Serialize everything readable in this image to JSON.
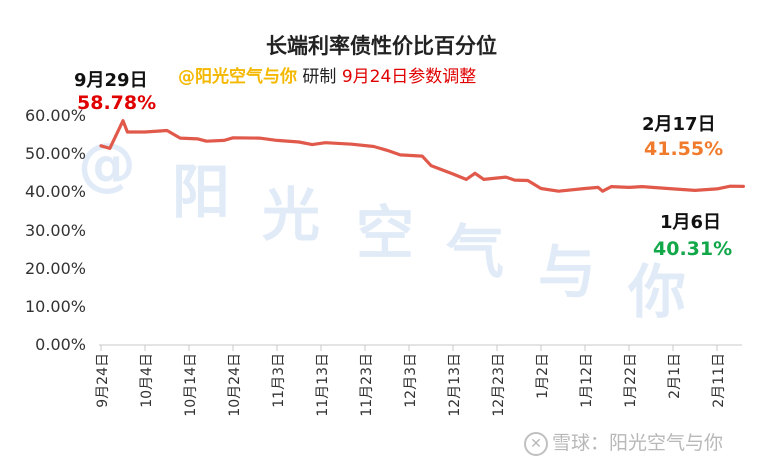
{
  "title": "长端利率债性价比百分位",
  "subtitle": {
    "author": "@阳光空气与你",
    "made_by": "研制",
    "note": "9月24日参数调整"
  },
  "annotations": {
    "peak": {
      "date": "9月29日",
      "value": "58.78%",
      "color": "#e00000"
    },
    "latest": {
      "date": "2月17日",
      "value": "41.55%",
      "color": "#f07b2c"
    },
    "low": {
      "date": "1月6日",
      "value": "40.31%",
      "color": "#12a84a"
    }
  },
  "watermark": {
    "main": [
      "@",
      "阳",
      "光",
      "空",
      "气",
      "与",
      "你"
    ],
    "footer": "雪球：阳光空气与你"
  },
  "chart_data": {
    "type": "line",
    "title": "长端利率债性价比百分位",
    "xlabel": "",
    "ylabel": "",
    "ylim": [
      0,
      60
    ],
    "yticks": [
      "0.00%",
      "10.00%",
      "20.00%",
      "30.00%",
      "40.00%",
      "50.00%",
      "60.00%"
    ],
    "xticks": [
      "9月24日",
      "10月4日",
      "10月14日",
      "10月24日",
      "11月3日",
      "11月13日",
      "11月23日",
      "12月3日",
      "12月13日",
      "12月23日",
      "1月2日",
      "1月12日",
      "1月22日",
      "2月1日",
      "2月11日"
    ],
    "grid": false,
    "legend": null,
    "line_color": "#e0594a",
    "series": [
      {
        "name": "长端利率债性价比百分位",
        "points": [
          {
            "x": "9月24日",
            "y": 52.2
          },
          {
            "x": "9月26日",
            "y": 51.5
          },
          {
            "x": "9月29日",
            "y": 58.78
          },
          {
            "x": "9月30日",
            "y": 55.8
          },
          {
            "x": "10月4日",
            "y": 55.8
          },
          {
            "x": "10月9日",
            "y": 56.2
          },
          {
            "x": "10月12日",
            "y": 54.2
          },
          {
            "x": "10月16日",
            "y": 54.0
          },
          {
            "x": "10月18日",
            "y": 53.4
          },
          {
            "x": "10月22日",
            "y": 53.6
          },
          {
            "x": "10月24日",
            "y": 54.3
          },
          {
            "x": "10月30日",
            "y": 54.2
          },
          {
            "x": "11月3日",
            "y": 53.6
          },
          {
            "x": "11月8日",
            "y": 53.2
          },
          {
            "x": "11月11日",
            "y": 52.5
          },
          {
            "x": "11月14日",
            "y": 53.0
          },
          {
            "x": "11月20日",
            "y": 52.6
          },
          {
            "x": "11月25日",
            "y": 52.0
          },
          {
            "x": "11月28日",
            "y": 51.0
          },
          {
            "x": "12月1日",
            "y": 49.8
          },
          {
            "x": "12月6日",
            "y": 49.5
          },
          {
            "x": "12月8日",
            "y": 47.0
          },
          {
            "x": "12月13日",
            "y": 44.8
          },
          {
            "x": "12月16日",
            "y": 43.4
          },
          {
            "x": "12月18日",
            "y": 45.0
          },
          {
            "x": "12月20日",
            "y": 43.4
          },
          {
            "x": "12月25日",
            "y": 44.0
          },
          {
            "x": "12月27日",
            "y": 43.2
          },
          {
            "x": "12月30日",
            "y": 43.1
          },
          {
            "x": "1月2日",
            "y": 41.0
          },
          {
            "x": "1月6日",
            "y": 40.31
          },
          {
            "x": "1月12日",
            "y": 41.0
          },
          {
            "x": "1月15日",
            "y": 41.3
          },
          {
            "x": "1月16日",
            "y": 40.3
          },
          {
            "x": "1月18日",
            "y": 41.5
          },
          {
            "x": "1月22日",
            "y": 41.3
          },
          {
            "x": "1月25日",
            "y": 41.5
          },
          {
            "x": "2月1日",
            "y": 40.9
          },
          {
            "x": "2月6日",
            "y": 40.5
          },
          {
            "x": "2月11日",
            "y": 40.9
          },
          {
            "x": "2月14日",
            "y": 41.6
          },
          {
            "x": "2月17日",
            "y": 41.55
          }
        ]
      }
    ]
  }
}
